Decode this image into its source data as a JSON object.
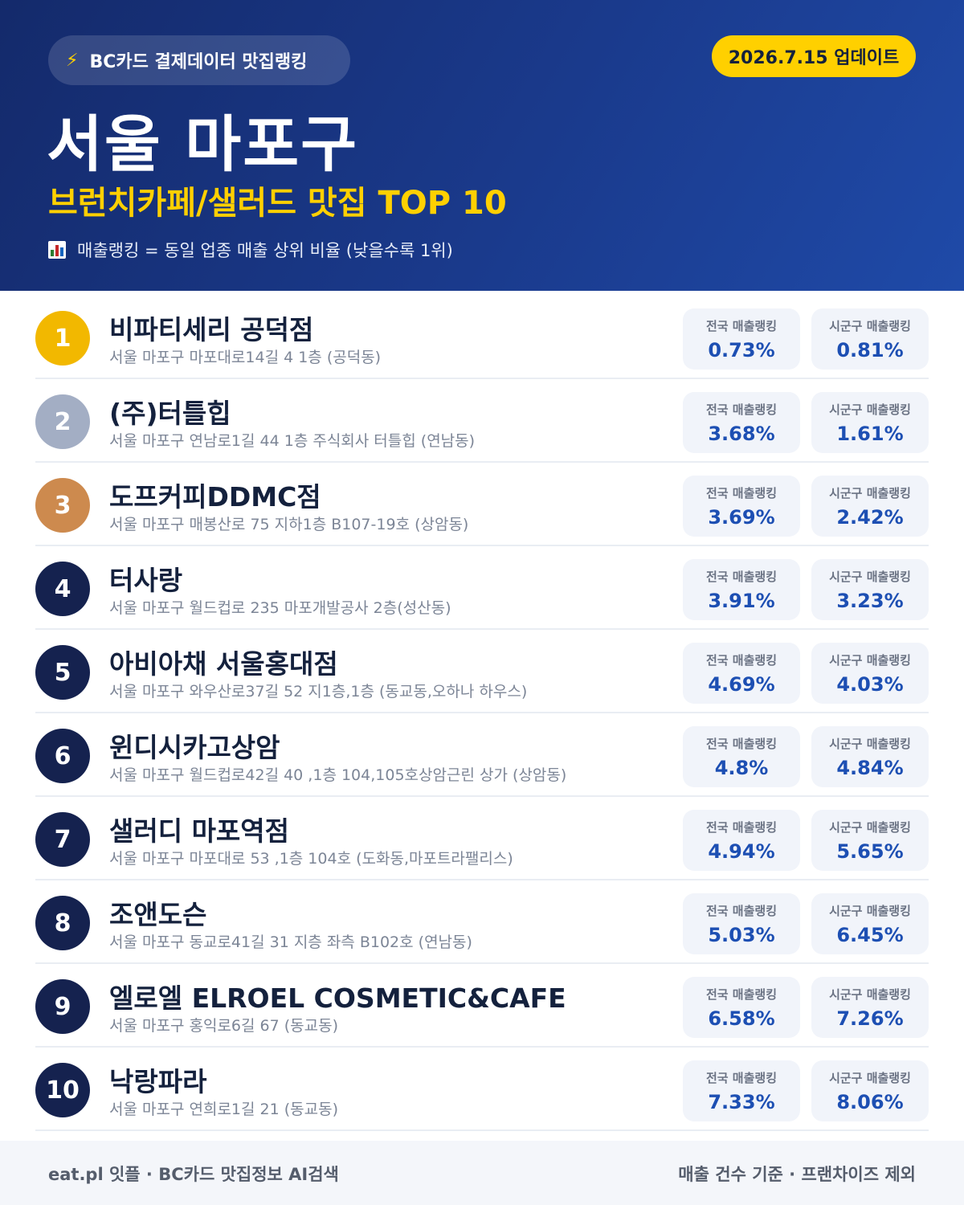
{
  "header": {
    "source_label": "BC카드 결제데이터 맛집랭킹",
    "update_label": "2026.7.15 업데이트",
    "title": "서울 마포구",
    "subtitle": "브런치카페/샐러드 맛집 TOP 10",
    "note": "매출랭킹 = 동일 업종 매출 상위 비율 (낮을수록 1위)",
    "icons": {
      "source": "lightning-icon",
      "note": "bar-chart-icon"
    }
  },
  "colors": {
    "header_bg": "#1a3a8c",
    "accent_yellow": "#ffd000",
    "rank_gold": "#f2b800",
    "rank_silver": "#a3aec4",
    "rank_bronze": "#cd8a4e",
    "rank_default": "#15224f",
    "value_blue": "#1d4fb3"
  },
  "labels": {
    "national": "전국 매출랭킹",
    "district": "시군구 매출랭킹"
  },
  "items": [
    {
      "rank": "1",
      "name": "비파티세리 공덕점",
      "address": "서울 마포구 마포대로14길 4 1층 (공덕동)",
      "national": "0.73%",
      "district": "0.81%"
    },
    {
      "rank": "2",
      "name": "(주)터틀힙",
      "address": "서울 마포구 연남로1길 44 1층 주식회사 터틀힙 (연남동)",
      "national": "3.68%",
      "district": "1.61%"
    },
    {
      "rank": "3",
      "name": "도프커피DDMC점",
      "address": "서울 마포구 매봉산로 75 지하1층 B107-19호 (상암동)",
      "national": "3.69%",
      "district": "2.42%"
    },
    {
      "rank": "4",
      "name": "터사랑",
      "address": "서울 마포구 월드컵로 235 마포개발공사 2층(성산동)",
      "national": "3.91%",
      "district": "3.23%"
    },
    {
      "rank": "5",
      "name": "아비아채 서울홍대점",
      "address": "서울 마포구 와우산로37길 52 지1층,1층 (동교동,오하나 하우스)",
      "national": "4.69%",
      "district": "4.03%"
    },
    {
      "rank": "6",
      "name": "윈디시카고상암",
      "address": "서울 마포구 월드컵로42길 40 ,1층 104,105호상암근린 상가 (상암동)",
      "national": "4.8%",
      "district": "4.84%"
    },
    {
      "rank": "7",
      "name": "샐러디 마포역점",
      "address": "서울 마포구 마포대로 53 ,1층 104호 (도화동,마포트라팰리스)",
      "national": "4.94%",
      "district": "5.65%"
    },
    {
      "rank": "8",
      "name": "조앤도슨",
      "address": "서울 마포구 동교로41길 31 지층 좌측 B102호 (연남동)",
      "national": "5.03%",
      "district": "6.45%"
    },
    {
      "rank": "9",
      "name": "엘로엘 ELROEL COSMETIC&CAFE",
      "address": "서울 마포구 홍익로6길 67 (동교동)",
      "national": "6.58%",
      "district": "7.26%"
    },
    {
      "rank": "10",
      "name": "낙랑파라",
      "address": "서울 마포구 연희로1길 21 (동교동)",
      "national": "7.33%",
      "district": "8.06%"
    }
  ],
  "footer": {
    "left": "eat.pl 잇플 · BC카드 맛집정보 AI검색",
    "right": "매출 건수 기준 · 프랜차이즈 제외"
  }
}
